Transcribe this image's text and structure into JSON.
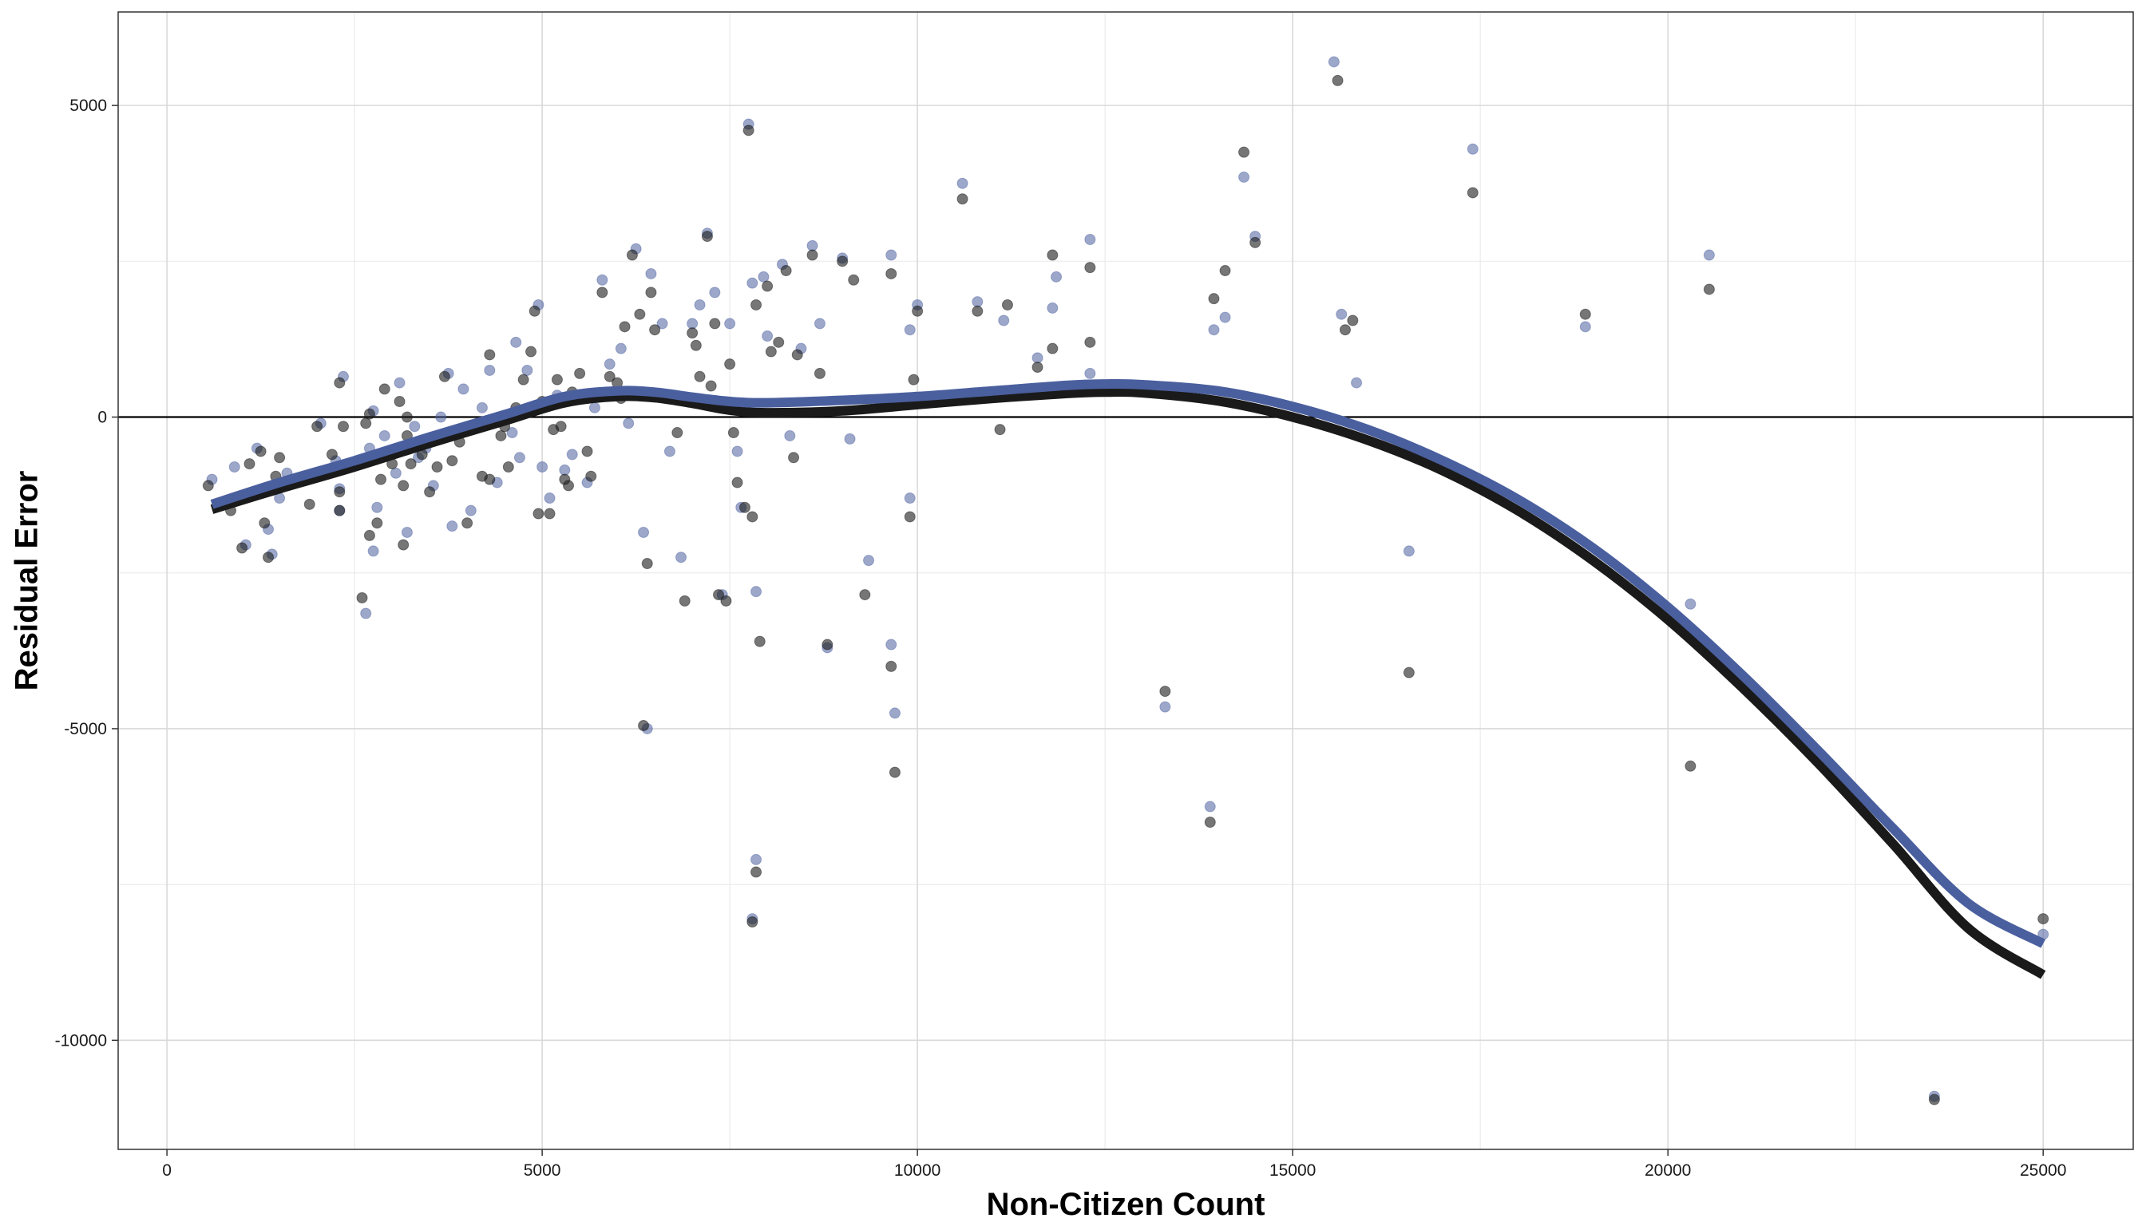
{
  "chart_data": {
    "type": "scatter",
    "title": "",
    "xlabel": "Non-Citizen Count",
    "ylabel": "Residual Error",
    "xlim": [
      -650,
      26200
    ],
    "ylim": [
      -11750,
      6500
    ],
    "x_ticks": [
      0,
      5000,
      10000,
      15000,
      20000,
      25000
    ],
    "y_ticks": [
      -10000,
      -5000,
      0,
      5000
    ],
    "x_tick_labels": [
      "0",
      "5000",
      "10000",
      "15000",
      "20000",
      "25000"
    ],
    "y_tick_labels": [
      "-10000",
      "-5000",
      "0",
      "5000"
    ],
    "grid": true,
    "legend": "none",
    "zero_line": 0,
    "series": [
      {
        "color": "#1a1a1a",
        "point_opacity": 0.6,
        "points": [
          [
            550,
            -1100
          ],
          [
            850,
            -1500
          ],
          [
            1000,
            -2100
          ],
          [
            1100,
            -750
          ],
          [
            1250,
            -550
          ],
          [
            1300,
            -1700
          ],
          [
            1350,
            -2250
          ],
          [
            1450,
            -950
          ],
          [
            1500,
            -650
          ],
          [
            1550,
            -1100
          ],
          [
            1900,
            -1400
          ],
          [
            2000,
            -150
          ],
          [
            2200,
            -600
          ],
          [
            2300,
            -1500
          ],
          [
            2300,
            -1200
          ],
          [
            2300,
            550
          ],
          [
            2350,
            -150
          ],
          [
            2600,
            -2900
          ],
          [
            2650,
            -100
          ],
          [
            2700,
            50
          ],
          [
            2700,
            -1900
          ],
          [
            2750,
            -650
          ],
          [
            2800,
            -1700
          ],
          [
            2850,
            -1000
          ],
          [
            2900,
            450
          ],
          [
            3000,
            -750
          ],
          [
            3100,
            250
          ],
          [
            3150,
            -2050
          ],
          [
            3150,
            -1100
          ],
          [
            3200,
            -300
          ],
          [
            3200,
            0
          ],
          [
            3250,
            -750
          ],
          [
            3400,
            -600
          ],
          [
            3500,
            -1200
          ],
          [
            3600,
            -800
          ],
          [
            3700,
            650
          ],
          [
            3800,
            -700
          ],
          [
            3900,
            -400
          ],
          [
            4000,
            -1700
          ],
          [
            4150,
            -150
          ],
          [
            4200,
            -950
          ],
          [
            4300,
            1000
          ],
          [
            4300,
            -1000
          ],
          [
            4450,
            -300
          ],
          [
            4500,
            -150
          ],
          [
            4550,
            -800
          ],
          [
            4650,
            150
          ],
          [
            4750,
            600
          ],
          [
            4850,
            1050
          ],
          [
            4900,
            1700
          ],
          [
            4950,
            -1550
          ],
          [
            5000,
            250
          ],
          [
            5100,
            -1550
          ],
          [
            5150,
            -200
          ],
          [
            5200,
            600
          ],
          [
            5250,
            -150
          ],
          [
            5300,
            -1000
          ],
          [
            5350,
            -1100
          ],
          [
            5400,
            400
          ],
          [
            5500,
            700
          ],
          [
            5600,
            -550
          ],
          [
            5650,
            -950
          ],
          [
            5800,
            2000
          ],
          [
            5900,
            650
          ],
          [
            6000,
            550
          ],
          [
            6050,
            300
          ],
          [
            6100,
            1450
          ],
          [
            6200,
            2600
          ],
          [
            6300,
            1650
          ],
          [
            6350,
            -4950
          ],
          [
            6400,
            -2350
          ],
          [
            6450,
            2000
          ],
          [
            6500,
            1400
          ],
          [
            6800,
            -250
          ],
          [
            6900,
            -2950
          ],
          [
            7000,
            1350
          ],
          [
            7050,
            1150
          ],
          [
            7100,
            650
          ],
          [
            7200,
            2900
          ],
          [
            7250,
            500
          ],
          [
            7300,
            1500
          ],
          [
            7350,
            -2850
          ],
          [
            7450,
            -2950
          ],
          [
            7500,
            850
          ],
          [
            7550,
            -250
          ],
          [
            7600,
            -1050
          ],
          [
            7700,
            -1450
          ],
          [
            7750,
            4600
          ],
          [
            7800,
            -8100
          ],
          [
            7800,
            -1600
          ],
          [
            7850,
            1800
          ],
          [
            7850,
            -7300
          ],
          [
            7900,
            -3600
          ],
          [
            8000,
            2100
          ],
          [
            8050,
            1050
          ],
          [
            8150,
            1200
          ],
          [
            8250,
            2350
          ],
          [
            8350,
            -650
          ],
          [
            8400,
            1000
          ],
          [
            8600,
            2600
          ],
          [
            8700,
            700
          ],
          [
            8800,
            -3650
          ],
          [
            9000,
            2500
          ],
          [
            9150,
            2200
          ],
          [
            9300,
            -2850
          ],
          [
            9650,
            2300
          ],
          [
            9650,
            -4000
          ],
          [
            9700,
            -5700
          ],
          [
            9900,
            -1600
          ],
          [
            9950,
            600
          ],
          [
            10000,
            1700
          ],
          [
            10600,
            3500
          ],
          [
            10800,
            1700
          ],
          [
            11100,
            -200
          ],
          [
            11200,
            1800
          ],
          [
            11600,
            800
          ],
          [
            11800,
            2600
          ],
          [
            11800,
            1100
          ],
          [
            12300,
            2400
          ],
          [
            12300,
            1200
          ],
          [
            13300,
            -4400
          ],
          [
            13900,
            -6500
          ],
          [
            13950,
            1900
          ],
          [
            14100,
            2350
          ],
          [
            14350,
            4250
          ],
          [
            14500,
            2800
          ],
          [
            15600,
            5400
          ],
          [
            15700,
            1400
          ],
          [
            15800,
            1550
          ],
          [
            16550,
            -4100
          ],
          [
            17400,
            3600
          ],
          [
            18900,
            1650
          ],
          [
            20300,
            -5600
          ],
          [
            20550,
            2050
          ],
          [
            23550,
            -10950
          ],
          [
            25000,
            -8050
          ]
        ],
        "curve": [
          [
            600,
            -1480
          ],
          [
            1500,
            -1150
          ],
          [
            2500,
            -800
          ],
          [
            3500,
            -420
          ],
          [
            4500,
            -60
          ],
          [
            5300,
            230
          ],
          [
            6000,
            330
          ],
          [
            6500,
            310
          ],
          [
            7000,
            220
          ],
          [
            7500,
            110
          ],
          [
            8000,
            70
          ],
          [
            9000,
            100
          ],
          [
            10000,
            200
          ],
          [
            11000,
            300
          ],
          [
            12000,
            380
          ],
          [
            12500,
            400
          ],
          [
            13000,
            390
          ],
          [
            14000,
            260
          ],
          [
            15000,
            0
          ],
          [
            16000,
            -370
          ],
          [
            17000,
            -860
          ],
          [
            18000,
            -1500
          ],
          [
            19000,
            -2300
          ],
          [
            20000,
            -3250
          ],
          [
            21000,
            -4350
          ],
          [
            22000,
            -5550
          ],
          [
            23000,
            -6850
          ],
          [
            24000,
            -8200
          ],
          [
            25000,
            -8950
          ]
        ]
      },
      {
        "color": "#4a5f9e",
        "point_opacity": 0.55,
        "points": [
          [
            600,
            -1000
          ],
          [
            900,
            -800
          ],
          [
            1050,
            -2050
          ],
          [
            1200,
            -500
          ],
          [
            1350,
            -1800
          ],
          [
            1400,
            -2200
          ],
          [
            1500,
            -1300
          ],
          [
            1600,
            -900
          ],
          [
            2050,
            -100
          ],
          [
            2250,
            -700
          ],
          [
            2300,
            -1150
          ],
          [
            2300,
            -1500
          ],
          [
            2350,
            650
          ],
          [
            2650,
            -3150
          ],
          [
            2700,
            -500
          ],
          [
            2750,
            100
          ],
          [
            2750,
            -2150
          ],
          [
            2800,
            -1450
          ],
          [
            2900,
            -300
          ],
          [
            3050,
            -900
          ],
          [
            3100,
            550
          ],
          [
            3200,
            -1850
          ],
          [
            3300,
            -150
          ],
          [
            3350,
            -650
          ],
          [
            3450,
            -500
          ],
          [
            3550,
            -1100
          ],
          [
            3650,
            0
          ],
          [
            3750,
            700
          ],
          [
            3800,
            -1750
          ],
          [
            3950,
            450
          ],
          [
            4050,
            -1500
          ],
          [
            4200,
            150
          ],
          [
            4300,
            750
          ],
          [
            4400,
            -1050
          ],
          [
            4600,
            -250
          ],
          [
            4650,
            1200
          ],
          [
            4700,
            -650
          ],
          [
            4800,
            750
          ],
          [
            4950,
            1800
          ],
          [
            5000,
            -800
          ],
          [
            5100,
            -1300
          ],
          [
            5200,
            350
          ],
          [
            5300,
            -850
          ],
          [
            5400,
            -600
          ],
          [
            5600,
            -1050
          ],
          [
            5700,
            150
          ],
          [
            5800,
            2200
          ],
          [
            5900,
            850
          ],
          [
            6050,
            1100
          ],
          [
            6150,
            -100
          ],
          [
            6250,
            2700
          ],
          [
            6350,
            -1850
          ],
          [
            6400,
            -5000
          ],
          [
            6450,
            2300
          ],
          [
            6600,
            1500
          ],
          [
            6700,
            -550
          ],
          [
            6850,
            -2250
          ],
          [
            7000,
            1500
          ],
          [
            7100,
            1800
          ],
          [
            7200,
            2950
          ],
          [
            7300,
            2000
          ],
          [
            7400,
            -2850
          ],
          [
            7500,
            1500
          ],
          [
            7600,
            -550
          ],
          [
            7650,
            -1450
          ],
          [
            7750,
            4700
          ],
          [
            7800,
            -8050
          ],
          [
            7800,
            2150
          ],
          [
            7850,
            -2800
          ],
          [
            7850,
            -7100
          ],
          [
            7950,
            2250
          ],
          [
            8000,
            1300
          ],
          [
            8200,
            2450
          ],
          [
            8300,
            -300
          ],
          [
            8450,
            1100
          ],
          [
            8600,
            2750
          ],
          [
            8700,
            1500
          ],
          [
            8800,
            -3700
          ],
          [
            9000,
            2550
          ],
          [
            9100,
            -350
          ],
          [
            9350,
            -2300
          ],
          [
            9650,
            2600
          ],
          [
            9650,
            -3650
          ],
          [
            9700,
            -4750
          ],
          [
            9900,
            1400
          ],
          [
            9900,
            -1300
          ],
          [
            10000,
            1800
          ],
          [
            10600,
            3750
          ],
          [
            10800,
            1850
          ],
          [
            11150,
            1550
          ],
          [
            11600,
            950
          ],
          [
            11800,
            1750
          ],
          [
            11850,
            2250
          ],
          [
            12300,
            2850
          ],
          [
            12300,
            700
          ],
          [
            13300,
            -4650
          ],
          [
            13900,
            -6250
          ],
          [
            13950,
            1400
          ],
          [
            14100,
            1600
          ],
          [
            14350,
            3850
          ],
          [
            14500,
            2900
          ],
          [
            15550,
            5700
          ],
          [
            15650,
            1650
          ],
          [
            15850,
            550
          ],
          [
            16550,
            -2150
          ],
          [
            17400,
            4300
          ],
          [
            18900,
            1450
          ],
          [
            20300,
            -3000
          ],
          [
            20550,
            2600
          ],
          [
            23550,
            -10900
          ],
          [
            25000,
            -8300
          ]
        ],
        "curve": [
          [
            600,
            -1400
          ],
          [
            1500,
            -1050
          ],
          [
            2500,
            -700
          ],
          [
            3500,
            -320
          ],
          [
            4500,
            40
          ],
          [
            5300,
            330
          ],
          [
            6000,
            420
          ],
          [
            6500,
            400
          ],
          [
            7000,
            320
          ],
          [
            7500,
            250
          ],
          [
            8000,
            230
          ],
          [
            9000,
            270
          ],
          [
            10000,
            330
          ],
          [
            11000,
            420
          ],
          [
            12000,
            510
          ],
          [
            12500,
            530
          ],
          [
            13000,
            520
          ],
          [
            14000,
            420
          ],
          [
            15000,
            170
          ],
          [
            16000,
            -200
          ],
          [
            17000,
            -700
          ],
          [
            18000,
            -1320
          ],
          [
            19000,
            -2100
          ],
          [
            20000,
            -3050
          ],
          [
            21000,
            -4150
          ],
          [
            22000,
            -5350
          ],
          [
            23000,
            -6600
          ],
          [
            24000,
            -7800
          ],
          [
            25000,
            -8450
          ]
        ]
      }
    ]
  }
}
